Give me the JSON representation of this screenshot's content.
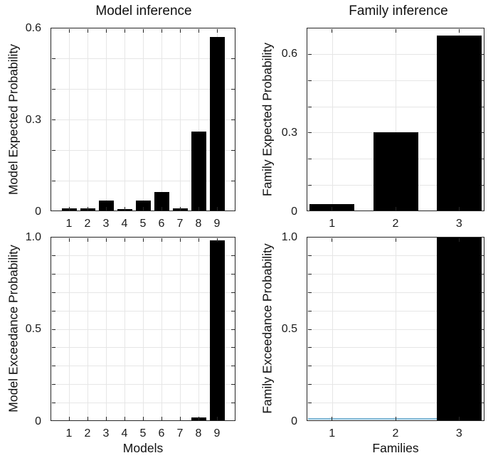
{
  "figure": {
    "colors": {
      "bar": "#000000",
      "grid": "#e6e6e6",
      "axis": "#262626",
      "text": "#111111",
      "background": "#ffffff",
      "baseline_marker": "#7db6d4"
    }
  },
  "chart_data": [
    {
      "id": "model-expected",
      "type": "bar",
      "title": "Model inference",
      "ylabel": "Model Expected Probability",
      "xlabel": "",
      "categories": [
        "1",
        "2",
        "3",
        "4",
        "5",
        "6",
        "7",
        "8",
        "9"
      ],
      "values": [
        0.009,
        0.01,
        0.036,
        0.007,
        0.035,
        0.063,
        0.009,
        0.26,
        0.57
      ],
      "ylim": [
        0,
        0.6
      ],
      "yticks": [
        0,
        0.3,
        0.6
      ],
      "ytick_labels": [
        "0",
        "0.3",
        "0.6"
      ],
      "grid_step": 0.1,
      "grid": true,
      "legend": "none"
    },
    {
      "id": "family-expected",
      "type": "bar",
      "title": "Family inference",
      "ylabel": "Family Expected Probability",
      "xlabel": "",
      "categories": [
        "1",
        "2",
        "3"
      ],
      "values": [
        0.027,
        0.3,
        0.67
      ],
      "ylim": [
        0,
        0.7
      ],
      "yticks": [
        0,
        0.3,
        0.6
      ],
      "ytick_labels": [
        "0",
        "0.3",
        "0.6"
      ],
      "grid_step": 0.1,
      "grid": true,
      "legend": "none"
    },
    {
      "id": "model-exceedance",
      "type": "bar",
      "title": "",
      "ylabel": "Model Exceedance Probability",
      "xlabel": "Models",
      "categories": [
        "1",
        "2",
        "3",
        "4",
        "5",
        "6",
        "7",
        "8",
        "9"
      ],
      "values": [
        0,
        0,
        0,
        0,
        0,
        0,
        0,
        0.018,
        0.98
      ],
      "ylim": [
        0,
        1.0
      ],
      "yticks": [
        0,
        0.5,
        1.0
      ],
      "ytick_labels": [
        "0",
        "0.5",
        "1.0"
      ],
      "grid_step": 0.1,
      "grid": true,
      "legend": "none"
    },
    {
      "id": "family-exceedance",
      "type": "bar",
      "title": "",
      "ylabel": "Family Exceedance Probability",
      "xlabel": "Families",
      "categories": [
        "1",
        "2",
        "3"
      ],
      "values": [
        0,
        0,
        1.0
      ],
      "ylim": [
        0,
        1.0
      ],
      "yticks": [
        0,
        0.5,
        1.0
      ],
      "ytick_labels": [
        "0",
        "0.5",
        "1.0"
      ],
      "grid_step": 0.1,
      "grid": true,
      "legend": "none",
      "underline": {
        "color": "#7db6d4",
        "x_start": 0.62,
        "x_end": 2.65
      }
    }
  ]
}
